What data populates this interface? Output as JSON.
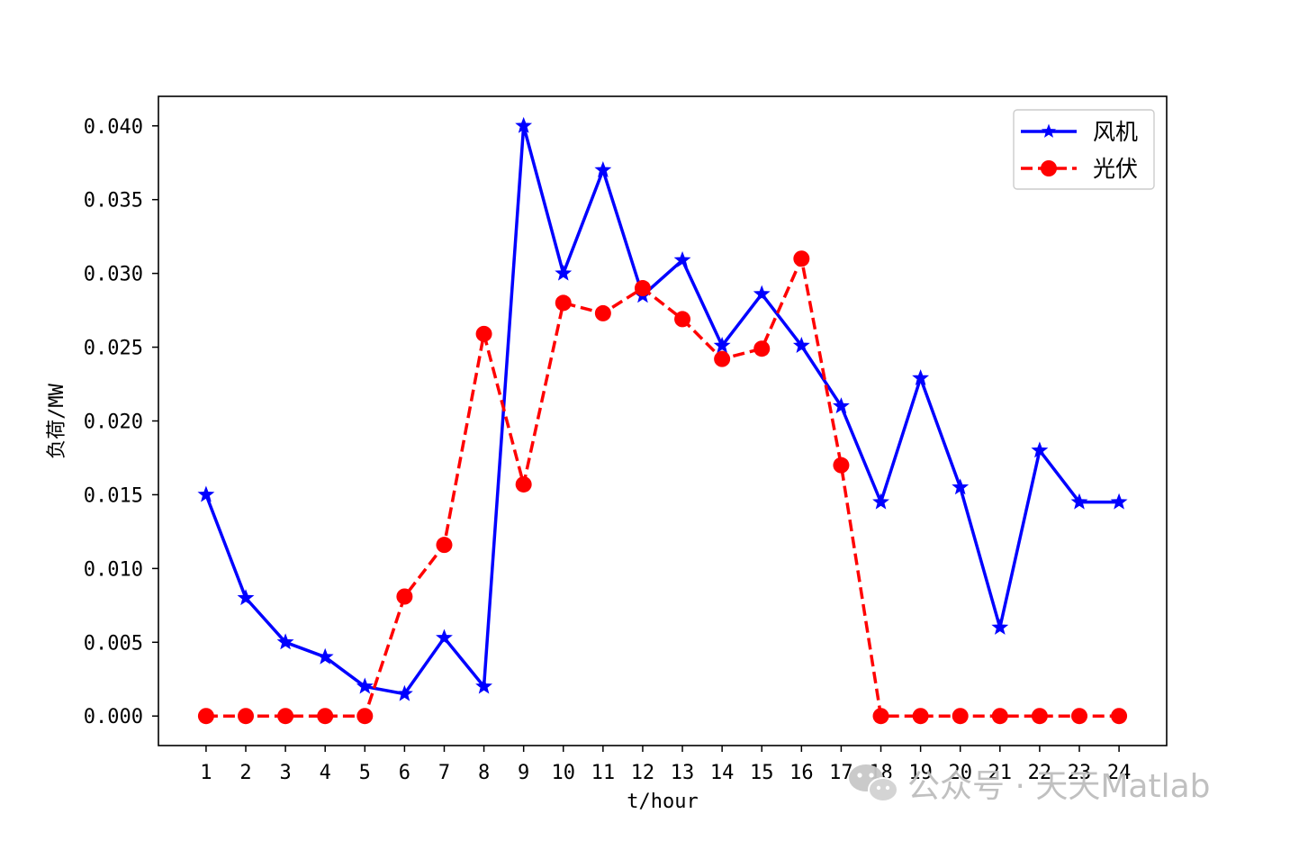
{
  "chart_data": {
    "type": "line",
    "title": "",
    "xlabel": "t/hour",
    "ylabel": "负荷/MW",
    "x": [
      1,
      2,
      3,
      4,
      5,
      6,
      7,
      8,
      9,
      10,
      11,
      12,
      13,
      14,
      15,
      16,
      17,
      18,
      19,
      20,
      21,
      22,
      23,
      24
    ],
    "xticks": [
      "1",
      "2",
      "3",
      "4",
      "5",
      "6",
      "7",
      "8",
      "9",
      "10",
      "11",
      "12",
      "13",
      "14",
      "15",
      "16",
      "17",
      "18",
      "19",
      "20",
      "21",
      "22",
      "23",
      "24"
    ],
    "yticks": [
      0,
      0.005,
      0.01,
      0.015,
      0.02,
      0.025,
      0.03,
      0.035,
      0.04
    ],
    "ytick_labels": [
      "0.000",
      "0.005",
      "0.010",
      "0.015",
      "0.020",
      "0.025",
      "0.030",
      "0.035",
      "0.040"
    ],
    "xlim": [
      -0.2,
      25.2
    ],
    "ylim": [
      -0.002,
      0.042
    ],
    "grid": false,
    "legend_position": "top-right",
    "series": [
      {
        "name": "风机",
        "color": "#0000ff",
        "line_style": "solid",
        "marker": "star",
        "values": [
          0.015,
          0.008,
          0.005,
          0.004,
          0.002,
          0.0015,
          0.0053,
          0.002,
          0.04,
          0.03,
          0.037,
          0.0285,
          0.0309,
          0.0251,
          0.0286,
          0.0251,
          0.021,
          0.0145,
          0.0229,
          0.0155,
          0.006,
          0.018,
          0.0145,
          0.0145
        ]
      },
      {
        "name": "光伏",
        "color": "#ff0000",
        "line_style": "dashed",
        "marker": "circle",
        "values": [
          0,
          0,
          0,
          0,
          0,
          0.0081,
          0.0116,
          0.0259,
          0.0157,
          0.028,
          0.0273,
          0.029,
          0.0269,
          0.0242,
          0.0249,
          0.031,
          0.017,
          0,
          0,
          0,
          0,
          0,
          0,
          0
        ]
      }
    ]
  },
  "watermark": {
    "text": "公众号 · 天天Matlab",
    "icon": "wechat-icon"
  }
}
